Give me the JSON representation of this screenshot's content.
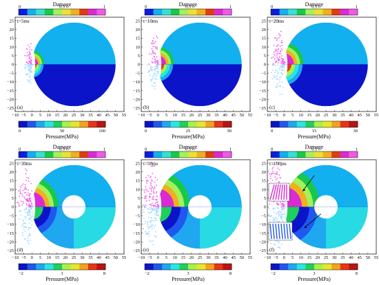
{
  "colormaps": {
    "damage": [
      "#0a1de0",
      "#12b0ee",
      "#36e0d6",
      "#18c84a",
      "#a6f05a",
      "#e9e233",
      "#f0b01e",
      "#e23b13",
      "#da2bd2",
      "#f05ae8"
    ],
    "pressure": [
      "#0b14c8",
      "#1f58ef",
      "#1fa8f0",
      "#2ae6e0",
      "#1fd05a",
      "#a8f04a",
      "#e8e62c",
      "#f2a41c",
      "#e83418",
      "#b81414"
    ]
  },
  "chart_data": [
    {
      "type": "heatmap",
      "panel_label": "(a)",
      "time_label": "t=5ms",
      "top_colorbar": {
        "title": "Damage",
        "ticks": [
          "0",
          "0.5",
          "1"
        ],
        "range": [
          0,
          1
        ]
      },
      "bottom_colorbar": {
        "title": "Pressure(MPa)",
        "ticks": [
          "0",
          "50",
          "100"
        ],
        "range": [
          0,
          100
        ]
      },
      "x_ticks": [
        "−10",
        "−5",
        "0",
        "5",
        "10",
        "15",
        "20",
        "25",
        "30",
        "35",
        "40",
        "45",
        "50",
        "55"
      ],
      "y_ticks": [
        "25",
        "20",
        "15",
        "10",
        "5",
        "0",
        "−5",
        "−10",
        "−15",
        "−20",
        "−25"
      ],
      "xlim": [
        -10,
        55
      ],
      "ylim": [
        -27,
        27
      ]
    },
    {
      "type": "heatmap",
      "panel_label": "(b)",
      "time_label": "t=10ms",
      "top_colorbar": {
        "title": "Damage",
        "ticks": [
          "0",
          "0.5",
          "1"
        ],
        "range": [
          0,
          1
        ]
      },
      "bottom_colorbar": {
        "title": "Pressure(MPa)",
        "ticks": [
          "0",
          "25",
          "50"
        ],
        "range": [
          0,
          50
        ]
      },
      "x_ticks": [
        "−10",
        "−5",
        "0",
        "5",
        "10",
        "15",
        "20",
        "25",
        "30",
        "35",
        "40",
        "45",
        "50",
        "55"
      ],
      "y_ticks": [
        "25",
        "20",
        "15",
        "10",
        "5",
        "0",
        "−5",
        "−10",
        "−15",
        "−20",
        "−25"
      ],
      "xlim": [
        -10,
        55
      ],
      "ylim": [
        -27,
        27
      ]
    },
    {
      "type": "heatmap",
      "panel_label": "(c)",
      "time_label": "t=20ms",
      "top_colorbar": {
        "title": "Damage",
        "ticks": [
          "0",
          "0.5",
          "1"
        ],
        "range": [
          0,
          1
        ]
      },
      "bottom_colorbar": {
        "title": "Pressure(MPa)",
        "ticks": [
          "0",
          "15",
          "30"
        ],
        "range": [
          0,
          30
        ]
      },
      "x_ticks": [
        "−10",
        "−5",
        "0",
        "5",
        "10",
        "15",
        "20",
        "25",
        "30",
        "35",
        "40",
        "45",
        "50",
        "55"
      ],
      "y_ticks": [
        "25",
        "20",
        "15",
        "10",
        "5",
        "0",
        "−5",
        "−10",
        "−15",
        "−20",
        "−25"
      ],
      "xlim": [
        -10,
        55
      ],
      "ylim": [
        -27,
        27
      ]
    },
    {
      "type": "heatmap",
      "panel_label": "(d)",
      "time_label": "t=30ms",
      "top_colorbar": {
        "title": "Damage",
        "ticks": [
          "0",
          "0.5",
          "1"
        ],
        "range": [
          0,
          1
        ]
      },
      "bottom_colorbar": {
        "title": "Pressure(MPa)",
        "ticks": [
          "−2",
          "3",
          "8"
        ],
        "range": [
          -2,
          8
        ]
      },
      "x_ticks": [
        "−10",
        "−5",
        "0",
        "5",
        "10",
        "15",
        "20",
        "25",
        "30",
        "35",
        "40",
        "45",
        "50",
        "55"
      ],
      "y_ticks": [
        "25",
        "20",
        "15",
        "10",
        "5",
        "0",
        "−5",
        "−10",
        "−15",
        "−20",
        "−25"
      ],
      "xlim": [
        -10,
        55
      ],
      "ylim": [
        -27,
        27
      ]
    },
    {
      "type": "heatmap",
      "panel_label": "(e)",
      "time_label": "t=50ms",
      "top_colorbar": {
        "title": "Damage",
        "ticks": [
          "0",
          "0.5",
          "1"
        ],
        "range": [
          0,
          1
        ]
      },
      "bottom_colorbar": {
        "title": "Pressure(MPa)",
        "ticks": [
          "−2",
          "3",
          "8"
        ],
        "range": [
          -2,
          8
        ]
      },
      "x_ticks": [
        "−10",
        "−5",
        "0",
        "5",
        "10",
        "15",
        "20",
        "25",
        "30",
        "35",
        "40",
        "45",
        "50",
        "55"
      ],
      "y_ticks": [
        "25",
        "20",
        "15",
        "10",
        "5",
        "0",
        "−5",
        "−10",
        "−15",
        "−20",
        "−25"
      ],
      "xlim": [
        -10,
        55
      ],
      "ylim": [
        -27,
        27
      ]
    },
    {
      "type": "heatmap",
      "panel_label": "(f)",
      "time_label": "t=100ms",
      "top_colorbar": {
        "title": "Damage",
        "ticks": [
          "0",
          "0.5",
          "1"
        ],
        "range": [
          0,
          1
        ]
      },
      "bottom_colorbar": {
        "title": "Pressure(MPa)",
        "ticks": [
          "−2",
          "3",
          "8"
        ],
        "range": [
          -2,
          8
        ]
      },
      "x_ticks": [
        "−10",
        "−5",
        "0",
        "5",
        "10",
        "15",
        "20",
        "25",
        "30",
        "35",
        "40",
        "45",
        "50",
        "55"
      ],
      "y_ticks": [
        "25",
        "20",
        "15",
        "10",
        "5",
        "0",
        "−5",
        "−10",
        "−15",
        "−20",
        "−25"
      ],
      "xlim": [
        -10,
        55
      ],
      "ylim": [
        -27,
        27
      ]
    }
  ]
}
